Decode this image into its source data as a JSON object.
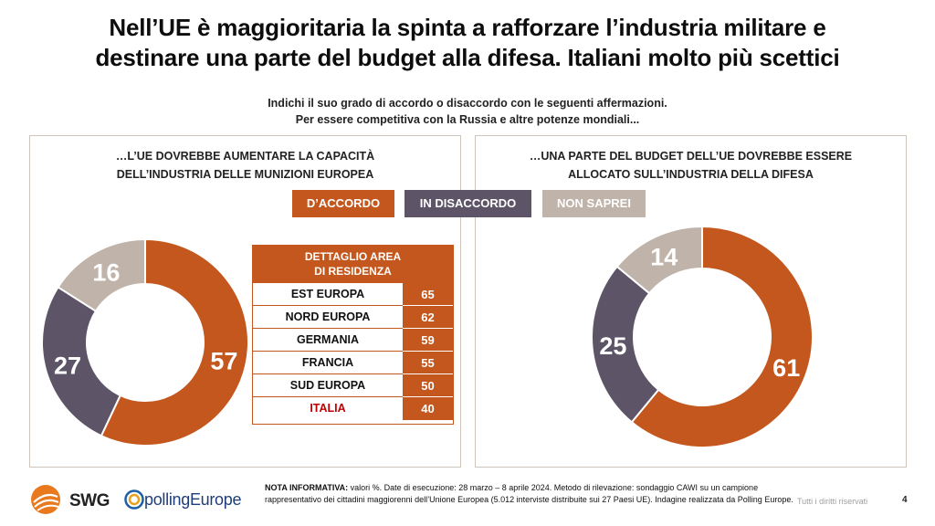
{
  "title_line1": "Nell’UE è maggioritaria la spinta a rafforzare l’industria militare e",
  "title_line2": "destinare una parte del budget alla difesa. Italiani molto più scettici",
  "subtitle_line1": "Indichi il suo grado di accordo o disaccordo con le seguenti affermazioni.",
  "subtitle_line2": "Per essere competitiva con la Russia e altre potenze mondiali...",
  "colors": {
    "agree": "#c4571d",
    "disagree": "#5d5467",
    "dontknow": "#bfb3aa"
  },
  "legend": {
    "agree": "D’ACCORDO",
    "disagree": "IN DISACCORDO",
    "dontknow": "NON SAPREI"
  },
  "chart_data": [
    {
      "type": "pie",
      "title": "…L’UE DOVREBBE AUMENTARE LA CAPACITÀ DELL’INDUSTRIA DELLE MUNIZIONI EUROPEA",
      "title_line1": "…L’UE DOVREBBE AUMENTARE LA CAPACITÀ",
      "title_line2": "DELL’INDUSTRIA DELLE MUNIZIONI EUROPEA",
      "categories": [
        "D’ACCORDO",
        "IN DISACCORDO",
        "NON SAPREI"
      ],
      "values": [
        57,
        27,
        16
      ]
    },
    {
      "type": "pie",
      "title": "…UNA PARTE DEL BUDGET DELL’UE DOVREBBE ESSERE ALLOCATO SULL’INDUSTRIA DELLA DIFESA",
      "title_line1": "…UNA PARTE DEL BUDGET DELL’UE DOVREBBE ESSERE",
      "title_line2": "ALLOCATO SULL’INDUSTRIA DELLA DIFESA",
      "categories": [
        "D’ACCORDO",
        "IN DISACCORDO",
        "NON SAPREI"
      ],
      "values": [
        61,
        25,
        14
      ]
    },
    {
      "type": "table",
      "title": "DETTAGLIO AREA DI RESIDENZA",
      "title_line1": "DETTAGLIO AREA",
      "title_line2": "DI RESIDENZA",
      "rows": [
        {
          "name": "EST EUROPA",
          "value": 65
        },
        {
          "name": "NORD EUROPA",
          "value": 62
        },
        {
          "name": "GERMANIA",
          "value": 59
        },
        {
          "name": "FRANCIA",
          "value": 55
        },
        {
          "name": "SUD EUROPA",
          "value": 50
        },
        {
          "name": "ITALIA",
          "value": 40
        }
      ]
    }
  ],
  "footer": {
    "note_label": "NOTA INFORMATIVA:",
    "note_text": " valori %. Date di esecuzione: 28 marzo – 8 aprile 2024. Metodo di rilevazione: sondaggio CAWI su un campione rappresentativo dei cittadini maggiorenni dell’Unione Europea (5.012 interviste distribuite sui 27 Paesi UE). Indagine realizzata da Polling Europe.",
    "rights": "Tutti i diritti riservati",
    "page": "4",
    "logo_swg": "SWG",
    "logo_pe": "pollingEurope"
  }
}
